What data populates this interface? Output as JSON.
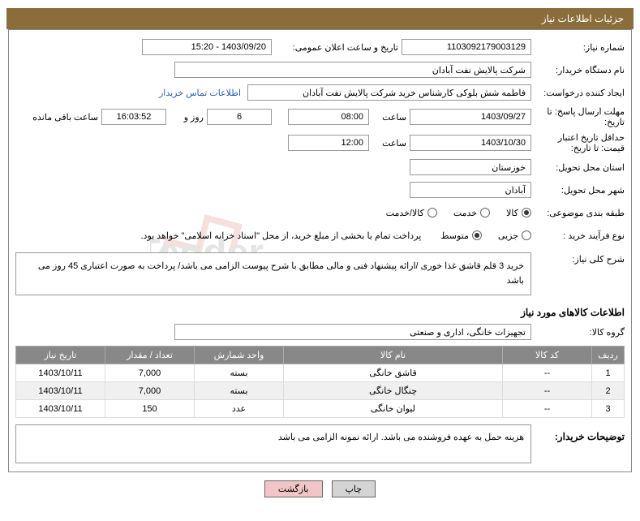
{
  "header": {
    "title": "جزئیات اطلاعات نیاز"
  },
  "fields": {
    "need_no_label": "شماره نیاز:",
    "need_no": "1103092179003129",
    "announce_label": "تاریخ و ساعت اعلان عمومی:",
    "announce": "1403/09/20 - 15:20",
    "buyer_org_label": "نام دستگاه خریدار:",
    "buyer_org": "شرکت پالایش نفت آبادان",
    "requester_label": "ایجاد کننده درخواست:",
    "requester": "فاطمه شش بلوکی کارشناس خرید شرکت پالایش نفت آبادان",
    "contact_link": "اطلاعات تماس خریدار",
    "deadline_label": "مهلت ارسال پاسخ: تا تاریخ:",
    "deadline_date": "1403/09/27",
    "time_label": "ساعت",
    "deadline_time": "08:00",
    "days": "6",
    "days_label": "روز و",
    "countdown": "16:03:52",
    "remain_label": "ساعت باقی مانده",
    "validity_label": "حداقل تاریخ اعتبار قیمت: تا تاریخ:",
    "validity_date": "1403/10/30",
    "validity_time": "12:00",
    "province_label": "استان محل تحویل:",
    "province": "خوزستان",
    "city_label": "شهر محل تحویل:",
    "city": "آبادان",
    "category_label": "طبقه بندی موضوعی:",
    "cat_goods": "کالا",
    "cat_service": "خدمت",
    "cat_both": "کالا/خدمت",
    "process_label": "نوع فرآیند خرید :",
    "proc_small": "جزیی",
    "proc_medium": "متوسط",
    "proc_note": "پرداخت تمام یا بخشی از مبلغ خرید، از محل \"اسناد خزانه اسلامی\" خواهد بود.",
    "summary_label": "شرح کلی نیاز:",
    "summary": "خرید 3 قلم قاشق غذا خوری /ارائه پیشنهاد فنی و مالی مطابق با شرح پیوست الزامی می باشد/ پرداخت به صورت اعتباری 45 روز می باشد",
    "items_title": "اطلاعات کالاهای مورد نیاز",
    "group_label": "گروه کالا:",
    "group": "تجهیزات خانگی، اداری و صنعتی",
    "buyer_notes_label": "توضیحات خریدار:",
    "buyer_notes": "هزینه حمل به عهده فروشنده می باشد. ارائه نمونه الزامی می باشد"
  },
  "table": {
    "headers": {
      "idx": "ردیف",
      "code": "کد کالا",
      "name": "نام کالا",
      "unit": "واحد شمارش",
      "qty": "تعداد / مقدار",
      "date": "تاریخ نیاز"
    },
    "rows": [
      {
        "idx": "1",
        "code": "--",
        "name": "قاشق خانگی",
        "unit": "بسته",
        "qty": "7,000",
        "date": "1403/10/11"
      },
      {
        "idx": "2",
        "code": "--",
        "name": "چنگال خانگی",
        "unit": "بسته",
        "qty": "7,000",
        "date": "1403/10/11"
      },
      {
        "idx": "3",
        "code": "--",
        "name": "لیوان خانگی",
        "unit": "عدد",
        "qty": "150",
        "date": "1403/10/11"
      }
    ]
  },
  "buttons": {
    "print": "چاپ",
    "back": "بازگشت"
  },
  "colors": {
    "header_bg": "#8a6d3b",
    "table_header_bg": "#888888",
    "link": "#2a5db0"
  }
}
